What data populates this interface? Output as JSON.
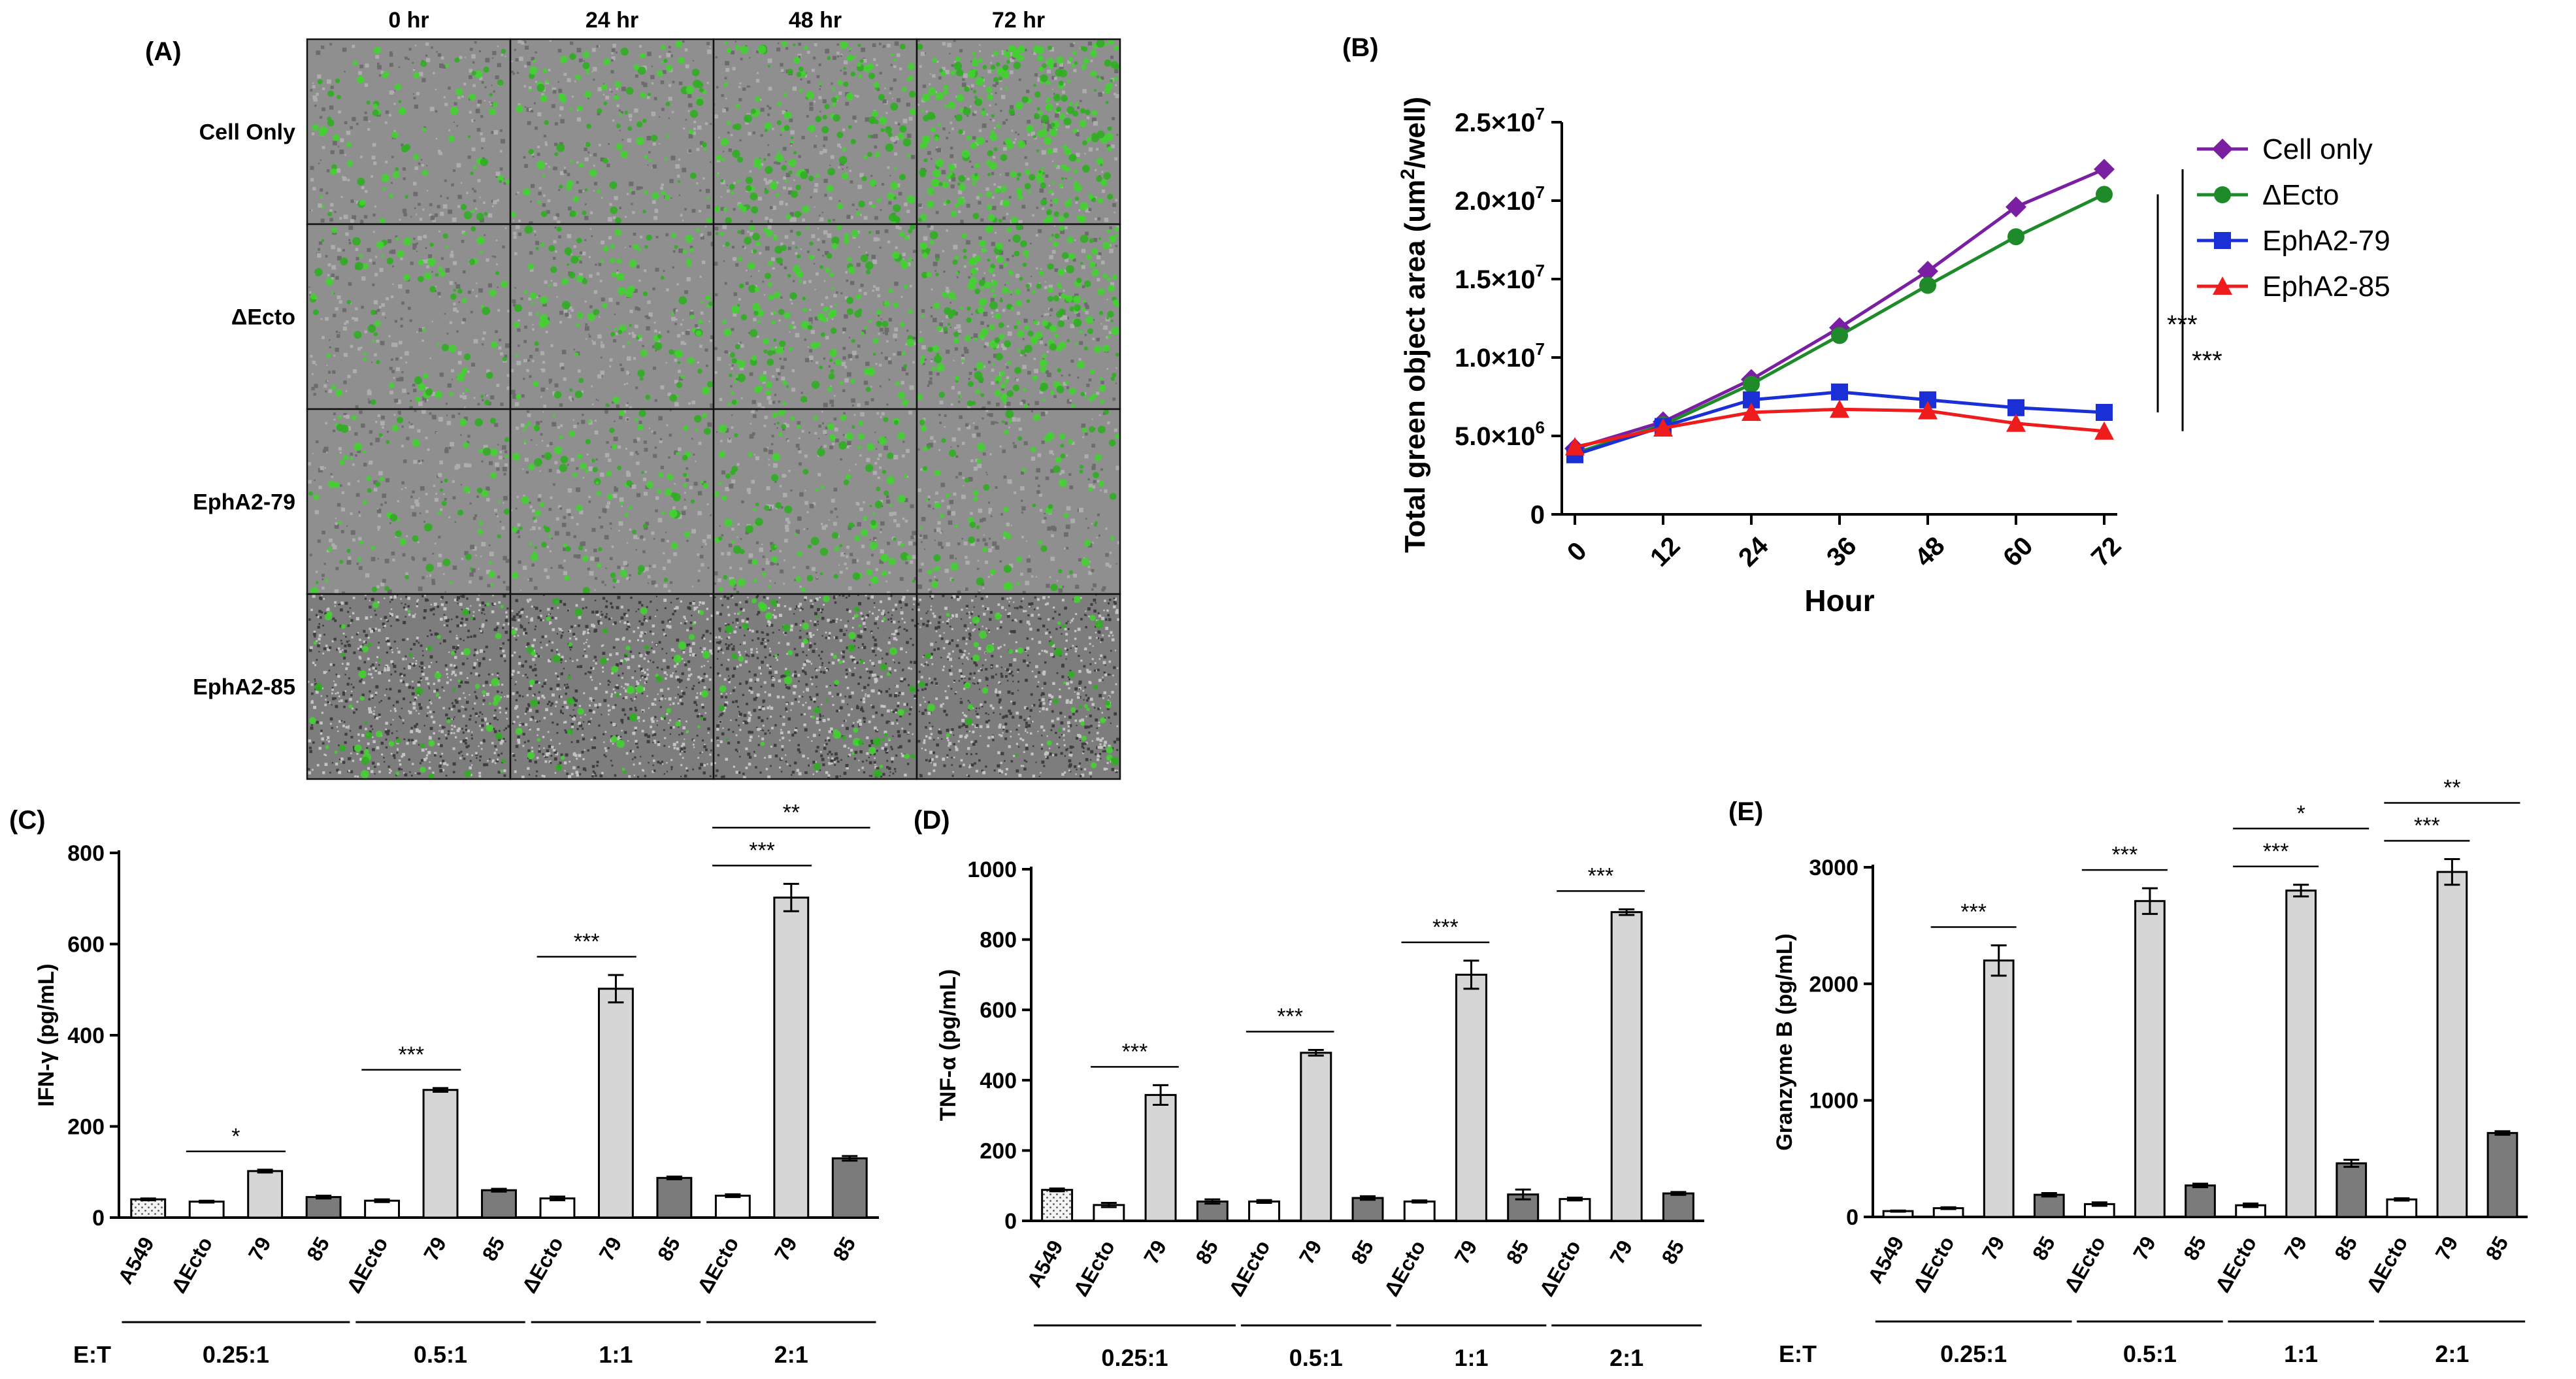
{
  "colors": {
    "cell_only": "#7a1fa2",
    "dEcto": "#1f8a2a",
    "epha2_79": "#1a2fd6",
    "epha2_85": "#ee1c1c",
    "bar_white": "#ffffff",
    "bar_light": "#d6d6d6",
    "bar_dark": "#7b7b7b",
    "bar_dotted": "#f2f2f2",
    "micro_bg": "#8f8f8f",
    "micro_green": "#42d130"
  },
  "panel_a": {
    "label": "(A)",
    "timepoints": [
      "0 hr",
      "24 hr",
      "48 hr",
      "72 hr"
    ],
    "conditions": [
      "Cell Only",
      "ΔEcto",
      "EphA2-79",
      "EphA2-85"
    ],
    "green_coverage": [
      [
        0.15,
        0.22,
        0.35,
        0.6
      ],
      [
        0.17,
        0.22,
        0.34,
        0.52
      ],
      [
        0.15,
        0.2,
        0.22,
        0.18
      ],
      [
        0.12,
        0.1,
        0.12,
        0.09
      ]
    ]
  },
  "chart_data": [
    {
      "id": "B",
      "panel_label": "(B)",
      "type": "line",
      "title": "",
      "xlabel": "Hour",
      "ylabel": "Total green object area (um²/well)",
      "ylabel_parts": [
        "Total green object area (um",
        "2",
        "/well)"
      ],
      "x": [
        0,
        12,
        24,
        36,
        48,
        60,
        72
      ],
      "xticks": [
        "0",
        "12",
        "24",
        "36",
        "48",
        "60",
        "72"
      ],
      "ylim": [
        0,
        25000000
      ],
      "yticks": [
        {
          "value": 0,
          "base": "0",
          "exp": ""
        },
        {
          "value": 5000000,
          "base": "5.0×10",
          "exp": "6"
        },
        {
          "value": 10000000,
          "base": "1.0×10",
          "exp": "7"
        },
        {
          "value": 15000000,
          "base": "1.5×10",
          "exp": "7"
        },
        {
          "value": 20000000,
          "base": "2.0×10",
          "exp": "7"
        },
        {
          "value": 25000000,
          "base": "2.5×10",
          "exp": "7"
        }
      ],
      "series": [
        {
          "name": "Cell only",
          "marker": "diamond",
          "color_key": "cell_only",
          "values": [
            4200000,
            5900000,
            8600000,
            11900000,
            15500000,
            19600000,
            22000000
          ],
          "errors": [
            200000,
            200000,
            300000,
            400000,
            500000,
            300000,
            200000
          ]
        },
        {
          "name": "ΔEcto",
          "marker": "circle",
          "color_key": "dEcto",
          "values": [
            3900000,
            5700000,
            8300000,
            11400000,
            14600000,
            17700000,
            20400000
          ],
          "errors": [
            200000,
            200000,
            300000,
            300000,
            300000,
            300000,
            300000
          ]
        },
        {
          "name": "EphA2-79",
          "marker": "square",
          "color_key": "epha2_79",
          "values": [
            3800000,
            5600000,
            7300000,
            7800000,
            7300000,
            6800000,
            6500000
          ],
          "errors": [
            200000,
            200000,
            300000,
            300000,
            200000,
            200000,
            200000
          ]
        },
        {
          "name": "EphA2-85",
          "marker": "triangle",
          "color_key": "epha2_85",
          "values": [
            4300000,
            5500000,
            6500000,
            6700000,
            6600000,
            5800000,
            5300000
          ],
          "errors": [
            200000,
            200000,
            200000,
            300000,
            200000,
            300000,
            200000
          ]
        }
      ],
      "significance": [
        {
          "label": "***",
          "y_range": [
            6500000,
            20400000
          ]
        },
        {
          "label": "***",
          "y_range": [
            5300000,
            22000000
          ]
        }
      ]
    },
    {
      "id": "C",
      "panel_label": "(C)",
      "type": "bar",
      "ylabel": "IFN-γ (pg/mL)",
      "ylim": [
        0,
        800
      ],
      "yticks": [
        0,
        200,
        400,
        600,
        800
      ],
      "categories": [
        "A549",
        "ΔEcto",
        "79",
        "85",
        "ΔEcto",
        "79",
        "85",
        "ΔEcto",
        "79",
        "85",
        "ΔEcto",
        "79",
        "85"
      ],
      "values": [
        40,
        35,
        102,
        45,
        37,
        280,
        60,
        42,
        502,
        87,
        48,
        702,
        130
      ],
      "errors": [
        2,
        2,
        3,
        3,
        3,
        4,
        3,
        4,
        30,
        3,
        3,
        30,
        5
      ],
      "fills": [
        "dotted",
        "white",
        "light",
        "dark",
        "white",
        "light",
        "dark",
        "white",
        "light",
        "dark",
        "white",
        "light",
        "dark"
      ],
      "group_label_title": "E:T",
      "groups": [
        {
          "label": "0.25:1",
          "start": 0,
          "end": 3
        },
        {
          "label": "0.5:1",
          "start": 4,
          "end": 6
        },
        {
          "label": "1:1",
          "start": 7,
          "end": 9
        },
        {
          "label": "2:1",
          "start": 10,
          "end": 12
        }
      ],
      "significance": [
        {
          "label": "*",
          "from": 1,
          "to": 2,
          "level": 0
        },
        {
          "label": "***",
          "from": 4,
          "to": 5,
          "level": 0
        },
        {
          "label": "***",
          "from": 7,
          "to": 8,
          "level": 0
        },
        {
          "label": "***",
          "from": 10,
          "to": 11,
          "level": 0
        },
        {
          "label": "**",
          "from": 10,
          "to": 12,
          "level": 1
        }
      ]
    },
    {
      "id": "D",
      "panel_label": "(D)",
      "type": "bar",
      "ylabel": "TNF-α (pg/mL)",
      "ylim": [
        0,
        1000
      ],
      "yticks": [
        0,
        200,
        400,
        600,
        800,
        1000
      ],
      "categories": [
        "A549",
        "ΔEcto",
        "79",
        "85",
        "ΔEcto",
        "79",
        "85",
        "ΔEcto",
        "79",
        "85",
        "ΔEcto",
        "79",
        "85"
      ],
      "values": [
        88,
        45,
        358,
        55,
        55,
        478,
        65,
        55,
        700,
        75,
        62,
        878,
        78
      ],
      "errors": [
        4,
        6,
        28,
        6,
        4,
        8,
        5,
        3,
        40,
        14,
        4,
        8,
        4
      ],
      "fills": [
        "dotted",
        "white",
        "light",
        "dark",
        "white",
        "light",
        "dark",
        "white",
        "light",
        "dark",
        "white",
        "light",
        "dark"
      ],
      "group_label_title": "",
      "groups": [
        {
          "label": "0.25:1",
          "start": 0,
          "end": 3
        },
        {
          "label": "0.5:1",
          "start": 4,
          "end": 6
        },
        {
          "label": "1:1",
          "start": 7,
          "end": 9
        },
        {
          "label": "2:1",
          "start": 10,
          "end": 12
        }
      ],
      "significance": [
        {
          "label": "***",
          "from": 1,
          "to": 2,
          "level": 0
        },
        {
          "label": "***",
          "from": 4,
          "to": 5,
          "level": 0
        },
        {
          "label": "***",
          "from": 7,
          "to": 8,
          "level": 0
        },
        {
          "label": "***",
          "from": 10,
          "to": 11,
          "level": 0
        }
      ]
    },
    {
      "id": "E",
      "panel_label": "(E)",
      "type": "bar",
      "ylabel": "Granzyme B (pg/mL)",
      "ylim": [
        0,
        3000
      ],
      "yticks": [
        0,
        1000,
        2000,
        3000
      ],
      "categories": [
        "A549",
        "ΔEcto",
        "79",
        "85",
        "ΔEcto",
        "79",
        "85",
        "ΔEcto",
        "79",
        "85",
        "ΔEcto",
        "79",
        "85"
      ],
      "values": [
        50,
        75,
        2200,
        190,
        110,
        2710,
        270,
        100,
        2800,
        460,
        150,
        2960,
        720
      ],
      "errors": [
        5,
        8,
        130,
        15,
        15,
        110,
        15,
        15,
        50,
        30,
        10,
        110,
        15
      ],
      "fills": [
        "white",
        "white",
        "light",
        "dark",
        "white",
        "light",
        "dark",
        "white",
        "light",
        "dark",
        "white",
        "light",
        "dark"
      ],
      "group_label_title": "E:T",
      "groups": [
        {
          "label": "0.25:1",
          "start": 0,
          "end": 3
        },
        {
          "label": "0.5:1",
          "start": 4,
          "end": 6
        },
        {
          "label": "1:1",
          "start": 7,
          "end": 9
        },
        {
          "label": "2:1",
          "start": 10,
          "end": 12
        }
      ],
      "significance": [
        {
          "label": "***",
          "from": 1,
          "to": 2,
          "level": 0
        },
        {
          "label": "***",
          "from": 4,
          "to": 5,
          "level": 0
        },
        {
          "label": "***",
          "from": 7,
          "to": 8,
          "level": 0
        },
        {
          "label": "*",
          "from": 7,
          "to": 9,
          "level": 1
        },
        {
          "label": "***",
          "from": 10,
          "to": 11,
          "level": 0
        },
        {
          "label": "**",
          "from": 10,
          "to": 12,
          "level": 1
        }
      ]
    }
  ]
}
